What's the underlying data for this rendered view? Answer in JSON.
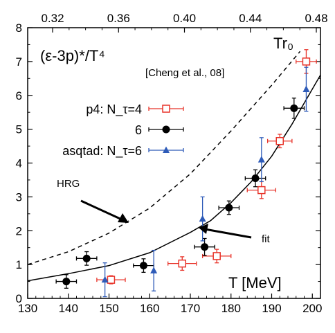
{
  "chart_data": {
    "type": "scatter",
    "ylabel": "(ε-3p)*/T⁴",
    "xlabel": "T [MeV]",
    "top_xlabel": "Tr₀",
    "citation": "[Cheng et al., 08]",
    "xlim": [
      130,
      202
    ],
    "ylim": [
      0,
      8
    ],
    "x_ticks": [
      130,
      140,
      150,
      160,
      170,
      180,
      190,
      200
    ],
    "y_ticks": [
      0,
      1,
      2,
      3,
      4,
      5,
      6,
      7,
      8
    ],
    "top_ticks": [
      "0.32",
      "0.36",
      "0.40",
      "0.44",
      "0.48"
    ],
    "legend_position": "left",
    "series": [
      {
        "name": "p4: N_τ=4",
        "marker": "open-square",
        "color": "#e8342a",
        "points": [
          {
            "x": 150.5,
            "y": 0.55,
            "xerr": 3.5,
            "yerr": 0.12
          },
          {
            "x": 168.0,
            "y": 1.03,
            "xerr": 3.5,
            "yerr": 0.2
          },
          {
            "x": 176.5,
            "y": 1.25,
            "xerr": 3.5,
            "yerr": 0.2
          },
          {
            "x": 187.5,
            "y": 3.2,
            "xerr": 3.5,
            "yerr": 0.25
          },
          {
            "x": 192.0,
            "y": 4.65,
            "xerr": 3.0,
            "yerr": 0.2
          },
          {
            "x": 198.5,
            "y": 7.0,
            "xerr": 2.5,
            "yerr": 0.35
          }
        ]
      },
      {
        "name": "6",
        "marker": "filled-circle",
        "color": "#000000",
        "points": [
          {
            "x": 139.5,
            "y": 0.5,
            "xerr": 2.5,
            "yerr": 0.2
          },
          {
            "x": 144.5,
            "y": 1.18,
            "xerr": 2.5,
            "yerr": 0.2
          },
          {
            "x": 158.5,
            "y": 0.97,
            "xerr": 2.5,
            "yerr": 0.2
          },
          {
            "x": 173.5,
            "y": 1.52,
            "xerr": 2.5,
            "yerr": 0.25
          },
          {
            "x": 179.5,
            "y": 2.68,
            "xerr": 2.5,
            "yerr": 0.2
          },
          {
            "x": 186.0,
            "y": 3.55,
            "xerr": 2.5,
            "yerr": 0.25
          },
          {
            "x": 195.5,
            "y": 5.62,
            "xerr": 2.5,
            "yerr": 0.3
          }
        ]
      },
      {
        "name": "asqtad: N_τ=6",
        "marker": "filled-triangle",
        "color": "#2e5bb8",
        "points": [
          {
            "x": 149.0,
            "y": 0.55,
            "xerr": 0,
            "yerr": 0.5
          },
          {
            "x": 161.0,
            "y": 0.82,
            "xerr": 0,
            "yerr": 0.6
          },
          {
            "x": 173.0,
            "y": 2.35,
            "xerr": 0,
            "yerr": 0.65
          },
          {
            "x": 187.5,
            "y": 4.1,
            "xerr": 0,
            "yerr": 0.65
          },
          {
            "x": 198.5,
            "y": 6.18,
            "xerr": 0,
            "yerr": 0.65
          }
        ]
      }
    ],
    "curves": [
      {
        "name": "HRG",
        "style": "dashed",
        "color": "#000000",
        "points": [
          [
            130,
            1.0
          ],
          [
            140,
            1.38
          ],
          [
            150,
            1.93
          ],
          [
            160,
            2.67
          ],
          [
            170,
            3.68
          ],
          [
            180,
            4.95
          ],
          [
            190,
            6.3
          ],
          [
            197,
            7.3
          ]
        ]
      },
      {
        "name": "fit",
        "style": "solid",
        "color": "#000000",
        "points": [
          [
            130,
            0.52
          ],
          [
            140,
            0.73
          ],
          [
            150,
            0.97
          ],
          [
            160,
            1.35
          ],
          [
            170,
            1.95
          ],
          [
            175,
            2.3
          ],
          [
            180,
            2.83
          ],
          [
            185,
            3.45
          ],
          [
            190,
            4.2
          ],
          [
            195,
            5.15
          ],
          [
            202,
            6.6
          ]
        ]
      }
    ],
    "annotations": [
      {
        "text": "HRG"
      },
      {
        "text": "fit"
      }
    ]
  }
}
